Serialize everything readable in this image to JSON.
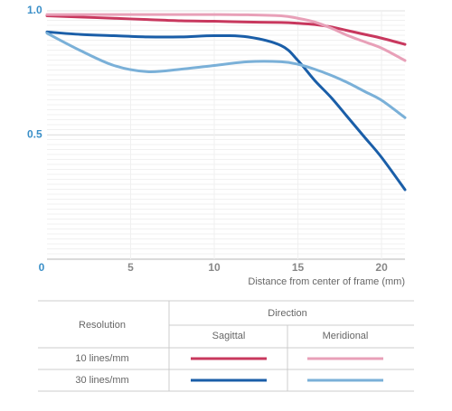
{
  "chart_data": {
    "type": "line",
    "x_label": "Distance from center of frame (mm)",
    "x": [
      0,
      2,
      4,
      6,
      8,
      10,
      12,
      14,
      15,
      16,
      17,
      18,
      19,
      20,
      21.4
    ],
    "series": [
      {
        "color": "#c8385e",
        "values": [
          0.98,
          0.975,
          0.97,
          0.965,
          0.96,
          0.958,
          0.955,
          0.953,
          0.95,
          0.945,
          0.935,
          0.92,
          0.905,
          0.89,
          0.865
        ]
      },
      {
        "color": "#e8a0b8",
        "values": [
          0.985,
          0.985,
          0.985,
          0.985,
          0.985,
          0.985,
          0.984,
          0.98,
          0.97,
          0.955,
          0.93,
          0.9,
          0.875,
          0.85,
          0.8
        ]
      },
      {
        "color": "#1a5ea8",
        "values": [
          0.915,
          0.905,
          0.9,
          0.895,
          0.895,
          0.9,
          0.895,
          0.86,
          0.8,
          0.72,
          0.65,
          0.57,
          0.49,
          0.41,
          0.28
        ]
      },
      {
        "color": "#7ab0d8",
        "values": [
          0.91,
          0.84,
          0.78,
          0.755,
          0.765,
          0.78,
          0.795,
          0.795,
          0.785,
          0.765,
          0.74,
          0.71,
          0.675,
          0.64,
          0.57
        ]
      }
    ],
    "xlim": [
      0,
      21.4
    ],
    "ylim": [
      0,
      1
    ],
    "xticks": [
      5,
      10,
      15,
      20
    ],
    "yticks": [
      0,
      0.5,
      {
        "value": 1,
        "label": "1.0"
      }
    ],
    "grid": true
  },
  "legend_table": {
    "resolution_header": "Resolution",
    "direction_header": "Direction",
    "columns": [
      "Sagittal",
      "Meridional"
    ],
    "rows": [
      "10 lines/mm",
      "30 lines/mm"
    ]
  }
}
